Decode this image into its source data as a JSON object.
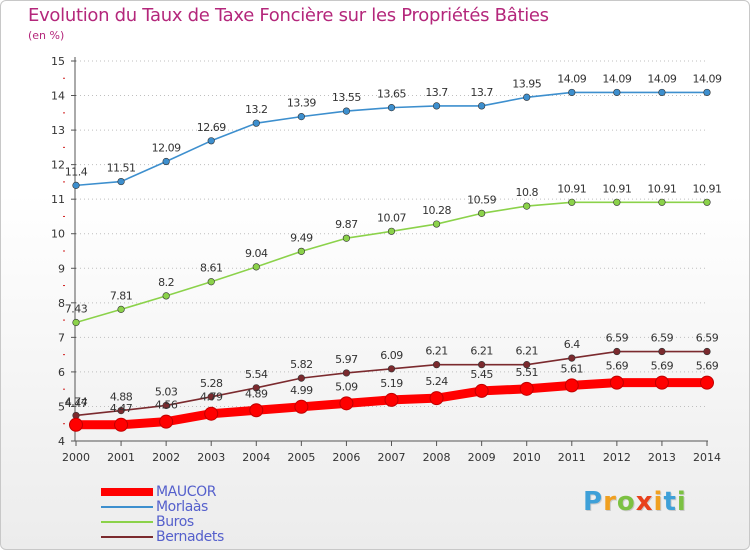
{
  "chart_data": {
    "type": "line",
    "title": "Evolution du Taux de Taxe Foncière sur les Propriétés Bâties",
    "ylabel": "(en %)",
    "xlabel": "",
    "x": [
      "2000",
      "2001",
      "2002",
      "2003",
      "2004",
      "2005",
      "2006",
      "2007",
      "2008",
      "2009",
      "2010",
      "2011",
      "2012",
      "2013",
      "2014"
    ],
    "ylim": [
      4,
      15
    ],
    "yticks": [
      "4",
      "5",
      "6",
      "7",
      "8",
      "9",
      "10",
      "11",
      "12",
      "13",
      "14",
      "15"
    ],
    "grid": "horizontal dotted",
    "legend_position": "bottom-left",
    "series": [
      {
        "name": "MAUCOR",
        "color": "#ff0000",
        "values": [
          4.47,
          4.47,
          4.56,
          4.79,
          4.89,
          4.99,
          5.09,
          5.19,
          5.24,
          5.45,
          5.51,
          5.61,
          5.69,
          5.69,
          5.69
        ],
        "labels": [
          "4.47",
          "4.47",
          "4.56",
          "4.79",
          "4.89",
          "4.99",
          "5.09",
          "5.19",
          "5.24",
          "5.45",
          "5.51",
          "5.61",
          "5.69",
          "5.69",
          "5.69"
        ]
      },
      {
        "name": "Morlaàs",
        "color": "#3d8fce",
        "values": [
          11.4,
          11.51,
          12.09,
          12.69,
          13.2,
          13.39,
          13.55,
          13.65,
          13.7,
          13.7,
          13.95,
          14.09,
          14.09,
          14.09,
          14.09
        ],
        "labels": [
          "11.4",
          "11.51",
          "12.09",
          "12.69",
          "13.2",
          "13.39",
          "13.55",
          "13.65",
          "13.7",
          "13.7",
          "13.95",
          "14.09",
          "14.09",
          "14.09",
          "14.09"
        ]
      },
      {
        "name": "Buros",
        "color": "#8bd24a",
        "values": [
          7.43,
          7.81,
          8.2,
          8.61,
          9.04,
          9.49,
          9.87,
          10.07,
          10.28,
          10.59,
          10.8,
          10.91,
          10.91,
          10.91,
          10.91
        ],
        "labels": [
          "7.43",
          "7.81",
          "8.2",
          "8.61",
          "9.04",
          "9.49",
          "9.87",
          "10.07",
          "10.28",
          "10.59",
          "10.8",
          "10.91",
          "10.91",
          "10.91",
          "10.91"
        ]
      },
      {
        "name": "Bernadets",
        "color": "#7b2a2e",
        "values": [
          4.74,
          4.88,
          5.03,
          5.28,
          5.54,
          5.82,
          5.97,
          6.09,
          6.21,
          6.21,
          6.21,
          6.4,
          6.59,
          6.59,
          6.59
        ],
        "labels": [
          "4.74",
          "4.88",
          "5.03",
          "5.28",
          "5.54",
          "5.82",
          "5.97",
          "6.09",
          "6.21",
          "6.21",
          "6.21",
          "6.4",
          "6.59",
          "6.59",
          "6.59"
        ]
      }
    ]
  },
  "logo": {
    "letters": [
      "P",
      "r",
      "o",
      "x",
      "i",
      "t",
      "i"
    ],
    "colors": [
      "#3ea0d8",
      "#f0a020",
      "#7cc142",
      "#e8401c",
      "#f0a020",
      "#3ea0d8",
      "#7cc142"
    ]
  }
}
